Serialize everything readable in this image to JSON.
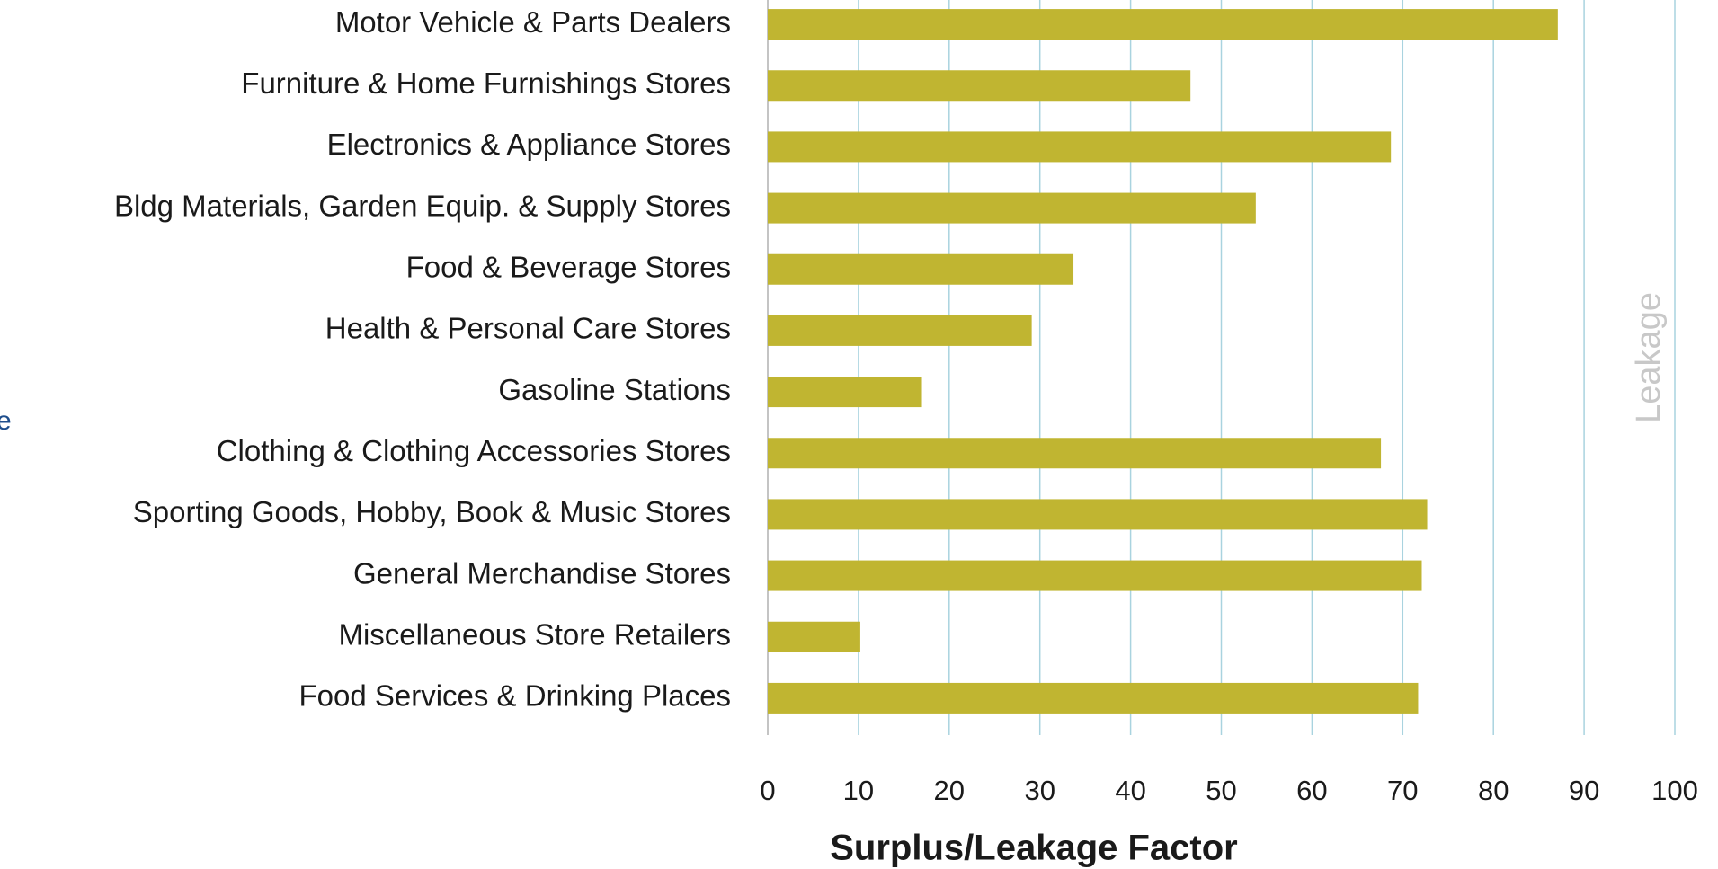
{
  "chart_data": {
    "type": "bar",
    "orientation": "horizontal",
    "categories": [
      "Motor Vehicle & Parts Dealers",
      "Furniture & Home Furnishings Stores",
      "Electronics & Appliance Stores",
      "Bldg Materials, Garden Equip. & Supply Stores",
      "Food & Beverage Stores",
      "Health & Personal Care Stores",
      "Gasoline Stations",
      "Clothing & Clothing Accessories Stores",
      "Sporting Goods, Hobby, Book & Music Stores",
      "General Merchandise Stores",
      "Miscellaneous Store Retailers",
      "Food Services & Drinking Places"
    ],
    "values": [
      87.1,
      46.6,
      68.7,
      53.8,
      33.7,
      29.1,
      17.0,
      67.6,
      72.7,
      72.1,
      10.2,
      71.7
    ],
    "color": "#c0b531",
    "xlabel": "Surplus/Leakage Factor",
    "xlim": [
      0,
      100
    ],
    "xticks": [
      0,
      10,
      20,
      30,
      40,
      50,
      60,
      70,
      80,
      90,
      100
    ],
    "grid": true,
    "grid_color": "#a9d3df",
    "annotation": "Leakage",
    "edge_fragment": "e"
  }
}
